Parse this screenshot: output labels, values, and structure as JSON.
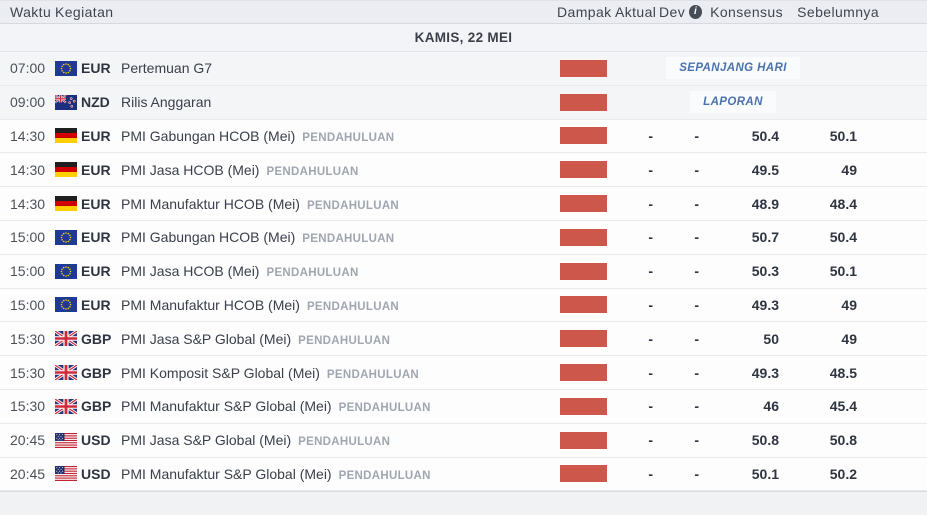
{
  "header": {
    "waktu": "Waktu",
    "kegiatan": "Kegiatan",
    "dampak": "Dampak",
    "aktual": "Aktual",
    "dev": "Dev",
    "dev_info_icon": "info-icon",
    "konsensus": "Konsensus",
    "sebelumnya": "Sebelumnya"
  },
  "day_header": "KAMIS, 22 MEI",
  "colors": {
    "impact_high": "#cd574b",
    "badge_text": "#4a72ad",
    "badge_bg": "#fafbfc",
    "shaded_row_bg": "#f4f5f7"
  },
  "rows": [
    {
      "time": "07:00",
      "flag": "eu-flag-icon",
      "currency": "EUR",
      "event": "Pertemuan G7",
      "tag": "",
      "impact": "high",
      "badge": "SEPANJANG HARI",
      "aktual": "",
      "dev": "",
      "konsensus": "",
      "sebelumnya": ""
    },
    {
      "time": "09:00",
      "flag": "nz-flag-icon",
      "currency": "NZD",
      "event": "Rilis Anggaran",
      "tag": "",
      "impact": "high",
      "badge": "LAPORAN",
      "aktual": "",
      "dev": "",
      "konsensus": "",
      "sebelumnya": ""
    },
    {
      "time": "14:30",
      "flag": "de-flag-icon",
      "currency": "EUR",
      "event": "PMI Gabungan HCOB (Mei)",
      "tag": "PENDAHULUAN",
      "impact": "high",
      "badge": null,
      "aktual": "-",
      "dev": "-",
      "konsensus": "50.4",
      "sebelumnya": "50.1"
    },
    {
      "time": "14:30",
      "flag": "de-flag-icon",
      "currency": "EUR",
      "event": "PMI Jasa HCOB (Mei)",
      "tag": "PENDAHULUAN",
      "impact": "high",
      "badge": null,
      "aktual": "-",
      "dev": "-",
      "konsensus": "49.5",
      "sebelumnya": "49"
    },
    {
      "time": "14:30",
      "flag": "de-flag-icon",
      "currency": "EUR",
      "event": "PMI Manufaktur HCOB (Mei)",
      "tag": "PENDAHULUAN",
      "impact": "high",
      "badge": null,
      "aktual": "-",
      "dev": "-",
      "konsensus": "48.9",
      "sebelumnya": "48.4"
    },
    {
      "time": "15:00",
      "flag": "eu-flag-icon",
      "currency": "EUR",
      "event": "PMI Gabungan HCOB (Mei)",
      "tag": "PENDAHULUAN",
      "impact": "high",
      "badge": null,
      "aktual": "-",
      "dev": "-",
      "konsensus": "50.7",
      "sebelumnya": "50.4"
    },
    {
      "time": "15:00",
      "flag": "eu-flag-icon",
      "currency": "EUR",
      "event": "PMI Jasa HCOB (Mei)",
      "tag": "PENDAHULUAN",
      "impact": "high",
      "badge": null,
      "aktual": "-",
      "dev": "-",
      "konsensus": "50.3",
      "sebelumnya": "50.1"
    },
    {
      "time": "15:00",
      "flag": "eu-flag-icon",
      "currency": "EUR",
      "event": "PMI Manufaktur HCOB (Mei)",
      "tag": "PENDAHULUAN",
      "impact": "high",
      "badge": null,
      "aktual": "-",
      "dev": "-",
      "konsensus": "49.3",
      "sebelumnya": "49"
    },
    {
      "time": "15:30",
      "flag": "gb-flag-icon",
      "currency": "GBP",
      "event": "PMI Jasa S&P Global (Mei)",
      "tag": "PENDAHULUAN",
      "impact": "high",
      "badge": null,
      "aktual": "-",
      "dev": "-",
      "konsensus": "50",
      "sebelumnya": "49"
    },
    {
      "time": "15:30",
      "flag": "gb-flag-icon",
      "currency": "GBP",
      "event": "PMI Komposit S&P Global (Mei)",
      "tag": "PENDAHULUAN",
      "impact": "high",
      "badge": null,
      "aktual": "-",
      "dev": "-",
      "konsensus": "49.3",
      "sebelumnya": "48.5"
    },
    {
      "time": "15:30",
      "flag": "gb-flag-icon",
      "currency": "GBP",
      "event": "PMI Manufaktur S&P Global (Mei)",
      "tag": "PENDAHULUAN",
      "impact": "high",
      "badge": null,
      "aktual": "-",
      "dev": "-",
      "konsensus": "46",
      "sebelumnya": "45.4"
    },
    {
      "time": "20:45",
      "flag": "us-flag-icon",
      "currency": "USD",
      "event": "PMI Jasa S&P Global (Mei)",
      "tag": "PENDAHULUAN",
      "impact": "high",
      "badge": null,
      "aktual": "-",
      "dev": "-",
      "konsensus": "50.8",
      "sebelumnya": "50.8"
    },
    {
      "time": "20:45",
      "flag": "us-flag-icon",
      "currency": "USD",
      "event": "PMI Manufaktur S&P Global (Mei)",
      "tag": "PENDAHULUAN",
      "impact": "high",
      "badge": null,
      "aktual": "-",
      "dev": "-",
      "konsensus": "50.1",
      "sebelumnya": "50.2"
    }
  ]
}
